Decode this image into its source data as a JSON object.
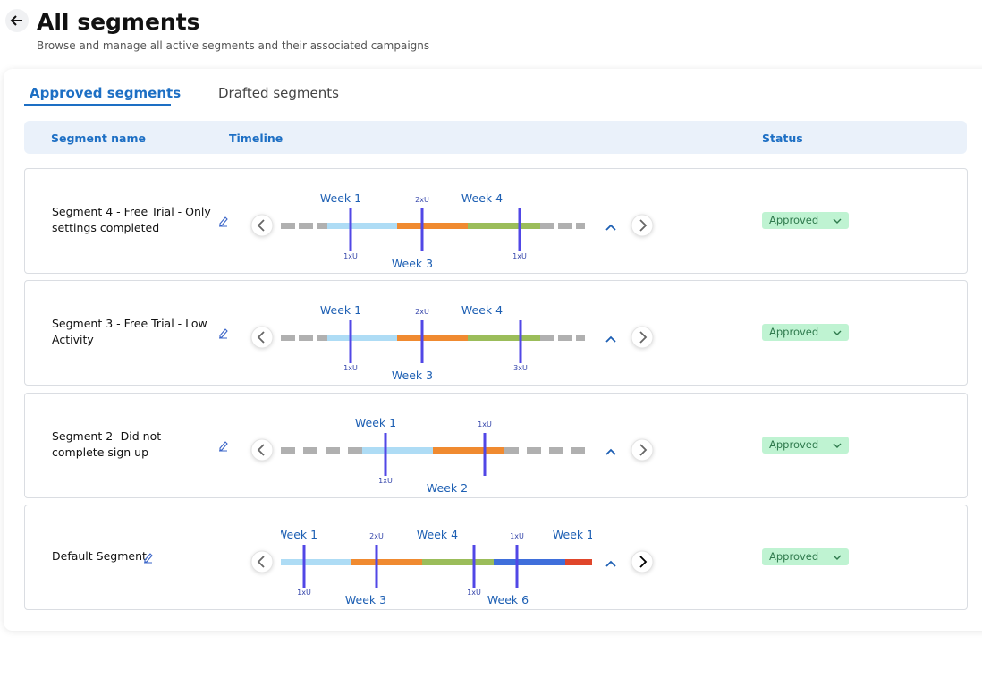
{
  "header": {
    "title": "All segments",
    "subtitle": "Browse and manage all active segments and their associated campaigns"
  },
  "tabs": [
    "Approved segments",
    "Drafted segments"
  ],
  "table": {
    "headers": [
      "Segment name",
      "Timeline",
      "Status"
    ],
    "rows": [
      {
        "name": "Segment 4 - Free Trial - Only settings completed",
        "markers": [
          {
            "top": "Week 1",
            "bottom": "1xU"
          },
          {
            "top": "2xU",
            "bottom": "Week 3"
          },
          {
            "top": "Week 4",
            "bottom": "1xU"
          }
        ],
        "status": "Approved"
      },
      {
        "name": "Segment 3 - Free Trial - Low Activity",
        "markers": [
          {
            "top": "Week 1",
            "bottom": "1xU"
          },
          {
            "top": "2xU",
            "bottom": "Week 3"
          },
          {
            "top": "Week 4",
            "bottom": "3xU"
          }
        ],
        "status": "Approved"
      },
      {
        "name": "Segment 2- Did not complete sign up",
        "markers": [
          {
            "top": "Week 1",
            "bottom": "1xU"
          },
          {
            "top": "1xU",
            "bottom": "Week 2"
          }
        ],
        "status": "Approved"
      },
      {
        "name": "Default Segment",
        "markers": [
          {
            "top": "Week 1",
            "bottom": "1xU"
          },
          {
            "top": "2xU",
            "bottom": "Week 3"
          },
          {
            "top": "Week 4",
            "bottom": "1xU"
          },
          {
            "top": "1xU",
            "bottom": "Week 6"
          },
          {
            "top": "Week 1"
          }
        ],
        "status": "Approved"
      }
    ]
  }
}
